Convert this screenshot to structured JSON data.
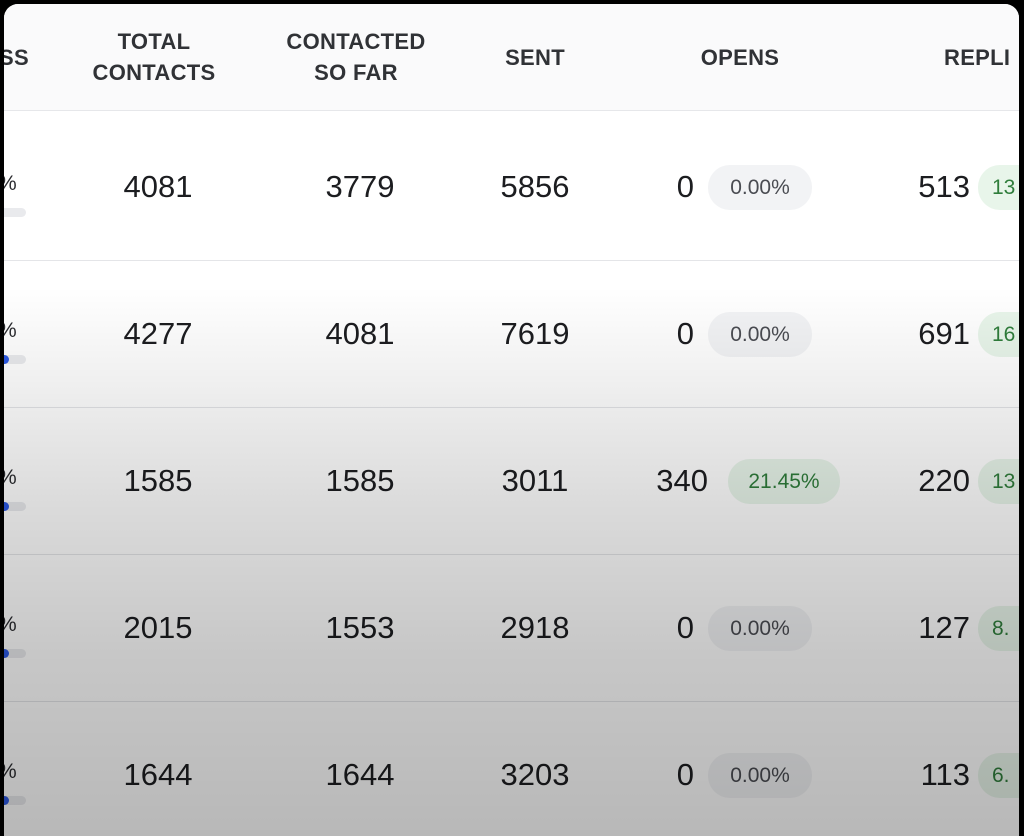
{
  "columns": {
    "progress": "SS",
    "total_contacts": [
      "TOTAL",
      "CONTACTS"
    ],
    "contacted_so_far": [
      "CONTACTED",
      "SO FAR"
    ],
    "sent": "SENT",
    "opens": "OPENS",
    "replies": "REPLI"
  },
  "rows": [
    {
      "progress_label": "%",
      "progress_fraction": 0.0,
      "total_contacts": "4081",
      "contacted_so_far": "3779",
      "sent": "5856",
      "opens": "0",
      "opens_rate": "0.00%",
      "opens_status": "neutral",
      "replies": "513",
      "replies_rate": "13"
    },
    {
      "progress_label": "%",
      "progress_fraction": 0.6,
      "total_contacts": "4277",
      "contacted_so_far": "4081",
      "sent": "7619",
      "opens": "0",
      "opens_rate": "0.00%",
      "opens_status": "neutral",
      "replies": "691",
      "replies_rate": "16"
    },
    {
      "progress_label": "%",
      "progress_fraction": 0.6,
      "total_contacts": "1585",
      "contacted_so_far": "1585",
      "sent": "3011",
      "opens": "340",
      "opens_rate": "21.45%",
      "opens_status": "good",
      "replies": "220",
      "replies_rate": "13"
    },
    {
      "progress_label": "%",
      "progress_fraction": 0.6,
      "total_contacts": "2015",
      "contacted_so_far": "1553",
      "sent": "2918",
      "opens": "0",
      "opens_rate": "0.00%",
      "opens_status": "neutral",
      "replies": "127",
      "replies_rate": "8."
    },
    {
      "progress_label": "%",
      "progress_fraction": 0.6,
      "total_contacts": "1644",
      "contacted_so_far": "1644",
      "sent": "3203",
      "opens": "0",
      "opens_rate": "0.00%",
      "opens_status": "neutral",
      "replies": "113",
      "replies_rate": "6."
    }
  ],
  "colors": {
    "progress_fill": "#2b59e3",
    "badge_good_bg": "#e8f5ea",
    "badge_good_text": "#2f7d3b",
    "badge_neutral_bg": "#f2f3f5",
    "badge_neutral_text": "#4a4c52"
  }
}
